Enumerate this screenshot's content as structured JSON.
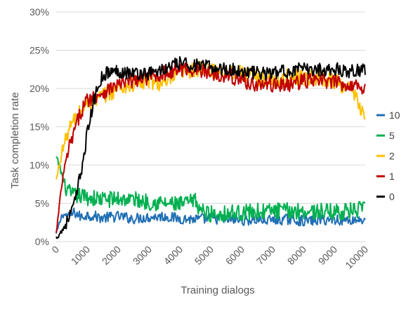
{
  "chart_data": {
    "type": "line",
    "title": "",
    "xlabel": "Training dialogs",
    "ylabel": "Task completion rate",
    "xlim": [
      0,
      10000
    ],
    "ylim": [
      0,
      30
    ],
    "x_ticks": [
      0,
      1000,
      2000,
      3000,
      4000,
      5000,
      6000,
      7000,
      8000,
      9000,
      10000
    ],
    "x_tick_labels": [
      "0",
      "1000",
      "2000",
      "3000",
      "4000",
      "5000",
      "6000",
      "7000",
      "8000",
      "9000",
      "10000"
    ],
    "y_ticks": [
      0,
      5,
      10,
      15,
      20,
      25,
      30
    ],
    "y_tick_labels": [
      "0%",
      "5%",
      "10%",
      "15%",
      "20%",
      "25%",
      "30%"
    ],
    "grid": "horizontal",
    "legend_position": "right",
    "series": [
      {
        "name": "10",
        "color": "#1f6fb4",
        "points": [
          [
            0,
            1
          ],
          [
            200,
            3.6
          ],
          [
            400,
            3.3
          ],
          [
            600,
            3.8
          ],
          [
            800,
            3.2
          ],
          [
            1000,
            3.5
          ],
          [
            1500,
            3.1
          ],
          [
            2000,
            3.3
          ],
          [
            2500,
            3.0
          ],
          [
            3000,
            3.2
          ],
          [
            3500,
            3.3
          ],
          [
            4000,
            3.0
          ],
          [
            4500,
            2.9
          ],
          [
            5000,
            3.0
          ],
          [
            5500,
            2.9
          ],
          [
            6000,
            2.8
          ],
          [
            6500,
            2.8
          ],
          [
            7000,
            2.8
          ],
          [
            7500,
            2.9
          ],
          [
            8000,
            2.7
          ],
          [
            8500,
            2.8
          ],
          [
            9000,
            2.9
          ],
          [
            9500,
            2.8
          ],
          [
            10000,
            2.9
          ]
        ]
      },
      {
        "name": "5",
        "color": "#00b050",
        "points": [
          [
            0,
            11
          ],
          [
            100,
            10
          ],
          [
            300,
            7
          ],
          [
            500,
            6
          ],
          [
            700,
            6
          ],
          [
            1000,
            5.8
          ],
          [
            1500,
            5.5
          ],
          [
            2000,
            5.6
          ],
          [
            2500,
            5.5
          ],
          [
            3000,
            5.2
          ],
          [
            3500,
            5.0
          ],
          [
            4000,
            4.8
          ],
          [
            4500,
            5.3
          ],
          [
            4700,
            4.0
          ],
          [
            5000,
            3.6
          ],
          [
            5500,
            3.7
          ],
          [
            6000,
            3.8
          ],
          [
            6500,
            3.9
          ],
          [
            7000,
            4.0
          ],
          [
            7500,
            4.0
          ],
          [
            8000,
            4.0
          ],
          [
            8500,
            3.9
          ],
          [
            9000,
            3.9
          ],
          [
            9500,
            4.0
          ],
          [
            10000,
            4.2
          ]
        ]
      },
      {
        "name": "2",
        "color": "#ffc000",
        "points": [
          [
            0,
            8
          ],
          [
            200,
            12
          ],
          [
            400,
            14.5
          ],
          [
            600,
            16
          ],
          [
            800,
            17
          ],
          [
            1000,
            18
          ],
          [
            1500,
            19
          ],
          [
            2000,
            20
          ],
          [
            2500,
            20.5
          ],
          [
            3000,
            21
          ],
          [
            3500,
            20.5
          ],
          [
            4000,
            22
          ],
          [
            4500,
            22.5
          ],
          [
            5000,
            22.3
          ],
          [
            5500,
            22.2
          ],
          [
            6000,
            22
          ],
          [
            6500,
            21.5
          ],
          [
            7000,
            21
          ],
          [
            7500,
            21.5
          ],
          [
            8000,
            21.5
          ],
          [
            8500,
            21.5
          ],
          [
            9000,
            21
          ],
          [
            9500,
            20
          ],
          [
            10000,
            16.5
          ]
        ]
      },
      {
        "name": "1",
        "color": "#c00000",
        "points": [
          [
            0,
            1
          ],
          [
            200,
            8
          ],
          [
            400,
            12
          ],
          [
            600,
            14.5
          ],
          [
            800,
            17
          ],
          [
            1000,
            18.5
          ],
          [
            1500,
            19.5
          ],
          [
            2000,
            20.5
          ],
          [
            2500,
            21
          ],
          [
            3000,
            21.5
          ],
          [
            3500,
            22
          ],
          [
            4000,
            22.5
          ],
          [
            4500,
            22.5
          ],
          [
            5000,
            22
          ],
          [
            5500,
            21.8
          ],
          [
            6000,
            21
          ],
          [
            6500,
            20.5
          ],
          [
            7000,
            20.5
          ],
          [
            7500,
            20.5
          ],
          [
            8000,
            21
          ],
          [
            8500,
            21
          ],
          [
            9000,
            20.8
          ],
          [
            9500,
            20.5
          ],
          [
            10000,
            20.2
          ]
        ]
      },
      {
        "name": "0",
        "color": "#000000",
        "points": [
          [
            0,
            0.5
          ],
          [
            200,
            1.5
          ],
          [
            400,
            3
          ],
          [
            600,
            5
          ],
          [
            800,
            9
          ],
          [
            1000,
            14
          ],
          [
            1200,
            18
          ],
          [
            1400,
            21
          ],
          [
            1600,
            22
          ],
          [
            2000,
            22.3
          ],
          [
            2500,
            22
          ],
          [
            3000,
            22
          ],
          [
            3500,
            22.5
          ],
          [
            4000,
            23.3
          ],
          [
            4500,
            23
          ],
          [
            5000,
            22.8
          ],
          [
            5500,
            22.5
          ],
          [
            6000,
            22.3
          ],
          [
            6500,
            22
          ],
          [
            7000,
            22
          ],
          [
            7500,
            22.3
          ],
          [
            8000,
            22.5
          ],
          [
            8500,
            22.5
          ],
          [
            9000,
            22.5
          ],
          [
            9500,
            22.3
          ],
          [
            10000,
            22.5
          ]
        ]
      }
    ]
  }
}
